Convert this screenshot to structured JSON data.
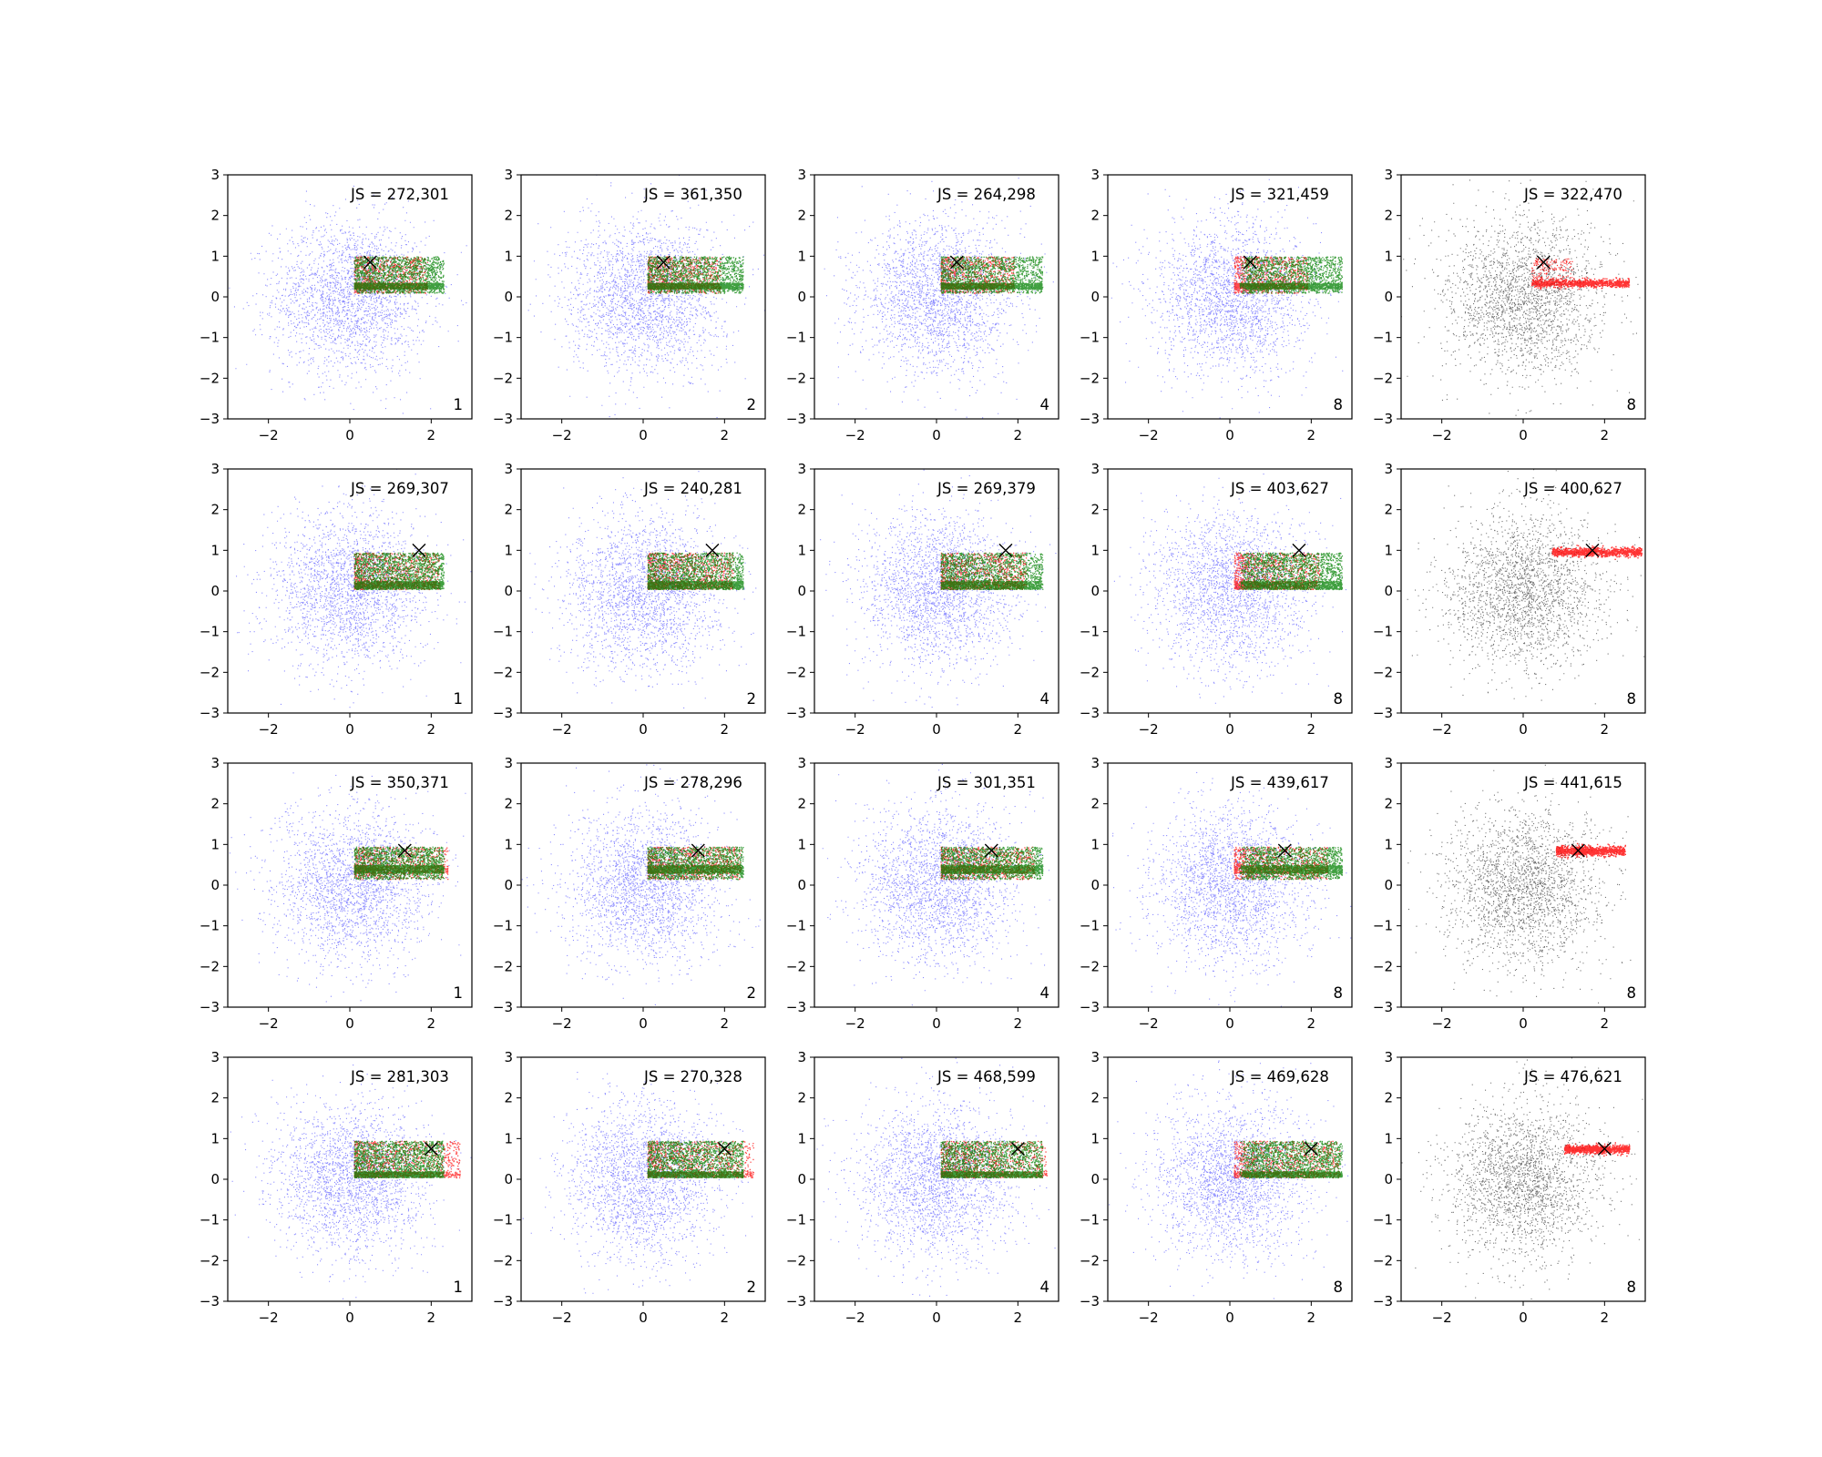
{
  "chart_data": {
    "type": "scatter",
    "layout": {
      "rows": 4,
      "cols": 5
    },
    "xlim": [
      -3,
      3
    ],
    "ylim": [
      -3,
      3
    ],
    "xticks": [
      -2,
      0,
      2
    ],
    "yticks": [
      -3,
      -2,
      -1,
      0,
      1,
      2,
      3
    ],
    "title": "",
    "xlabel": "",
    "ylabel": "",
    "grid": false,
    "background_color": "#000000",
    "series": [
      {
        "role": "background_normal_samples",
        "color": "#0000ff",
        "color_last_column": "#000000",
        "mean": [
          0,
          0
        ],
        "std": 1
      },
      {
        "role": "target_samples",
        "color": "#ff0000"
      },
      {
        "role": "generated_samples",
        "color": "#008000"
      },
      {
        "role": "reference_point",
        "marker": "x",
        "color": "#000000"
      }
    ],
    "row_params": [
      {
        "marker": [
          0.5,
          0.85
        ],
        "bands": [
          [
            0.1,
            1.0
          ],
          [
            0.2,
            0.35
          ]
        ],
        "red_end": 1.9,
        "last_col": {
          "xr": [
            0.2,
            2.6
          ],
          "y": 0.35,
          "ys": 0.05,
          "spread_y": [
            0.3,
            0.95
          ]
        }
      },
      {
        "marker": [
          1.7,
          1.0
        ],
        "bands": [
          [
            0.1,
            0.95
          ],
          [
            0.05,
            0.25
          ]
        ],
        "red_end": 2.2,
        "last_col": {
          "xr": [
            0.7,
            2.9
          ],
          "y": 0.97,
          "ys": 0.05,
          "spread_y": [
            0.9,
            1.0
          ]
        }
      },
      {
        "marker": [
          1.35,
          0.85
        ],
        "bands": [
          [
            0.15,
            0.95
          ],
          [
            0.3,
            0.5
          ]
        ],
        "red_end": 2.4,
        "last_col": {
          "xr": [
            0.8,
            2.5
          ],
          "y": 0.85,
          "ys": 0.06,
          "spread_y": [
            0.75,
            0.95
          ]
        }
      },
      {
        "marker": [
          2.0,
          0.75
        ],
        "bands": [
          [
            0.1,
            0.95
          ],
          [
            0.05,
            0.2
          ]
        ],
        "red_end": 2.7,
        "last_col": {
          "xr": [
            1.0,
            2.6
          ],
          "y": 0.75,
          "ys": 0.05,
          "spread_y": [
            0.7,
            0.8
          ]
        }
      }
    ],
    "panels": [
      {
        "row": 0,
        "col": 0,
        "js": "JS = 272,301",
        "k": "1"
      },
      {
        "row": 0,
        "col": 1,
        "js": "JS = 361,350",
        "k": "2"
      },
      {
        "row": 0,
        "col": 2,
        "js": "JS = 264,298",
        "k": "4"
      },
      {
        "row": 0,
        "col": 3,
        "js": "JS = 321,459",
        "k": "8"
      },
      {
        "row": 0,
        "col": 4,
        "js": "JS = 322,470",
        "k": "8"
      },
      {
        "row": 1,
        "col": 0,
        "js": "JS = 269,307",
        "k": "1"
      },
      {
        "row": 1,
        "col": 1,
        "js": "JS = 240,281",
        "k": "2"
      },
      {
        "row": 1,
        "col": 2,
        "js": "JS = 269,379",
        "k": "4"
      },
      {
        "row": 1,
        "col": 3,
        "js": "JS = 403,627",
        "k": "8"
      },
      {
        "row": 1,
        "col": 4,
        "js": "JS = 400,627",
        "k": "8"
      },
      {
        "row": 2,
        "col": 0,
        "js": "JS = 350,371",
        "k": "1"
      },
      {
        "row": 2,
        "col": 1,
        "js": "JS = 278,296",
        "k": "2"
      },
      {
        "row": 2,
        "col": 2,
        "js": "JS = 301,351",
        "k": "4"
      },
      {
        "row": 2,
        "col": 3,
        "js": "JS = 439,617",
        "k": "8"
      },
      {
        "row": 2,
        "col": 4,
        "js": "JS = 441,615",
        "k": "8"
      },
      {
        "row": 3,
        "col": 0,
        "js": "JS = 281,303",
        "k": "1"
      },
      {
        "row": 3,
        "col": 1,
        "js": "JS = 270,328",
        "k": "2"
      },
      {
        "row": 3,
        "col": 2,
        "js": "JS = 468,599",
        "k": "4"
      },
      {
        "row": 3,
        "col": 3,
        "js": "JS = 469,628",
        "k": "8"
      },
      {
        "row": 3,
        "col": 4,
        "js": "JS = 476,621",
        "k": "8"
      }
    ]
  }
}
